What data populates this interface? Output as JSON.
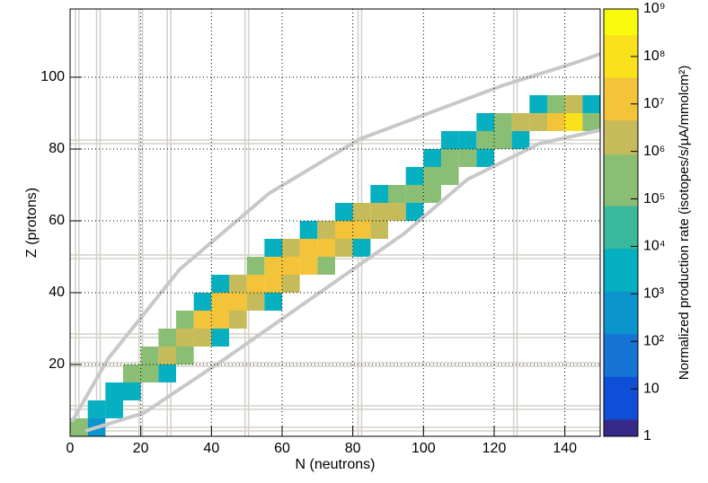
{
  "chart_data": {
    "type": "heatmap",
    "x_label": "N (neutrons)",
    "y_label": "Z (protons)",
    "colorbar_label": "Normalized production rate (isotopes/s/µA/mmolcm²)",
    "xlim": [
      0,
      150
    ],
    "ylim": [
      0,
      119
    ],
    "xticks": [
      0,
      20,
      40,
      60,
      80,
      100,
      120,
      140
    ],
    "yticks": [
      20,
      40,
      60,
      80,
      100
    ],
    "grid": true,
    "cell_size": 5,
    "magic_numbers": [
      2,
      8,
      20,
      28,
      50,
      82,
      126
    ],
    "zlim": [
      1,
      1000000000
    ],
    "zscale": "log",
    "zticks": [
      1,
      10,
      {
        "value": 100,
        "label": "10²"
      },
      {
        "value": 1000,
        "label": "10³"
      },
      {
        "value": 10000,
        "label": "10⁴"
      },
      {
        "value": 100000,
        "label": "10⁵"
      },
      {
        "value": 1000000,
        "label": "10⁶"
      },
      {
        "value": 10000000,
        "label": "10⁷"
      },
      {
        "value": 100000000,
        "label": "10⁸"
      },
      {
        "value": 1000000000,
        "label": "10⁹"
      }
    ],
    "palette": [
      "#352a87",
      "#0f4fd8",
      "#1574d4",
      "#0c95cc",
      "#07b0c0",
      "#3ab89c",
      "#8bbe75",
      "#c6bb5a",
      "#f3c33a",
      "#f9e21c",
      "#f9fb0e"
    ],
    "x": [
      2.5,
      7.5,
      7.5,
      12.5,
      12.5,
      17.5,
      17.5,
      22.5,
      22.5,
      27.5,
      27.5,
      27.5,
      32.5,
      32.5,
      32.5,
      37.5,
      37.5,
      37.5,
      42.5,
      42.5,
      42.5,
      42.5,
      47.5,
      47.5,
      47.5,
      52.5,
      52.5,
      52.5,
      57.5,
      57.5,
      57.5,
      57.5,
      62.5,
      62.5,
      62.5,
      67.5,
      67.5,
      67.5,
      72.5,
      72.5,
      72.5,
      77.5,
      77.5,
      77.5,
      82.5,
      82.5,
      82.5,
      87.5,
      87.5,
      87.5,
      92.5,
      92.5,
      97.5,
      97.5,
      97.5,
      102.5,
      102.5,
      102.5,
      107.5,
      107.5,
      107.5,
      112.5,
      112.5,
      117.5,
      117.5,
      117.5,
      122.5,
      122.5,
      127.5,
      127.5,
      132.5,
      132.5,
      137.5,
      137.5,
      142.5,
      142.5,
      147.5,
      147.5
    ],
    "y": [
      2.5,
      2.5,
      7.5,
      7.5,
      12.5,
      12.5,
      17.5,
      17.5,
      22.5,
      17.5,
      22.5,
      27.5,
      22.5,
      27.5,
      32.5,
      27.5,
      32.5,
      37.5,
      27.5,
      32.5,
      37.5,
      42.5,
      32.5,
      37.5,
      42.5,
      37.5,
      42.5,
      47.5,
      37.5,
      42.5,
      47.5,
      52.5,
      42.5,
      47.5,
      52.5,
      47.5,
      52.5,
      57.5,
      47.5,
      52.5,
      57.5,
      52.5,
      57.5,
      62.5,
      52.5,
      57.5,
      62.5,
      57.5,
      62.5,
      67.5,
      62.5,
      67.5,
      62.5,
      67.5,
      72.5,
      67.5,
      72.5,
      77.5,
      72.5,
      77.5,
      82.5,
      77.5,
      82.5,
      77.5,
      82.5,
      87.5,
      82.5,
      87.5,
      82.5,
      87.5,
      87.5,
      92.5,
      87.5,
      92.5,
      87.5,
      92.5,
      87.5,
      92.5
    ],
    "values": [
      100000,
      1000,
      10000,
      10000,
      10000,
      10000,
      100000,
      100000,
      100000,
      10000,
      1000000,
      100000,
      100000,
      1000000,
      100000,
      1000000,
      10000000,
      10000,
      10000,
      10000000,
      10000000,
      10000,
      1000000,
      10000000,
      1000000,
      1000000,
      10000000,
      100000,
      10000,
      10000000,
      10000000,
      10000,
      1000000,
      10000000,
      1000000,
      10000000,
      10000000,
      10000,
      100000,
      10000000,
      1000000,
      1000000,
      10000000,
      10000,
      10000,
      10000000,
      1000000,
      1000000,
      1000000,
      10000,
      1000000,
      100000,
      10000,
      100000,
      10000,
      100000,
      100000,
      10000,
      100000,
      100000,
      10000,
      100000,
      10000,
      10000,
      100000,
      10000,
      100000,
      100000,
      10000,
      1000000,
      1000000,
      10000,
      10000000,
      100000,
      100000000,
      1000000,
      100000,
      10000
    ]
  }
}
